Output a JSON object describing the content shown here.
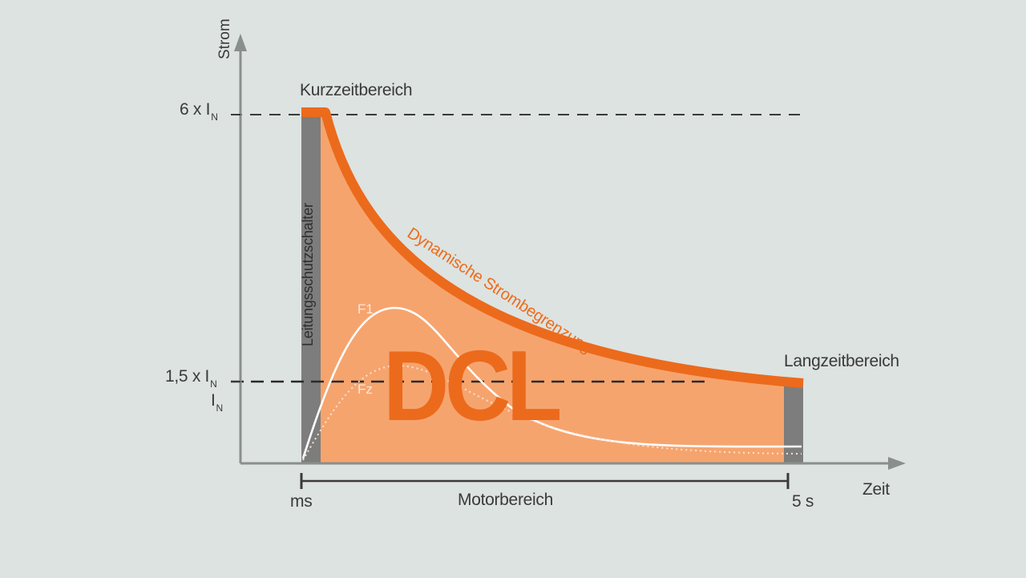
{
  "axes": {
    "y_label": "Strom",
    "x_label": "Zeit"
  },
  "y_ticks": {
    "six": {
      "prefix": "6 x I",
      "sub": "N"
    },
    "one_five": {
      "prefix": "1,5 x I",
      "sub": "N"
    },
    "nominal": {
      "prefix": "I",
      "sub": "N"
    }
  },
  "x_ticks": {
    "start": "ms",
    "end": "5 s"
  },
  "labels": {
    "short_time": "Kurzzeitbereich",
    "long_time": "Langzeitbereich",
    "breaker": "Leitungsschutzschalter",
    "dynamic_limit": "Dynamische Strombegrenzung",
    "motor_range": "Motorbereich",
    "dcl": "DCL",
    "f1": "F1",
    "fz": "Fz"
  },
  "colors": {
    "background": "#dde3e0",
    "orange_fill": "#f6a46e",
    "orange_line": "#ec6a1c",
    "gray_bar": "#7c7d7c",
    "axis": "#8a8f8e"
  }
}
